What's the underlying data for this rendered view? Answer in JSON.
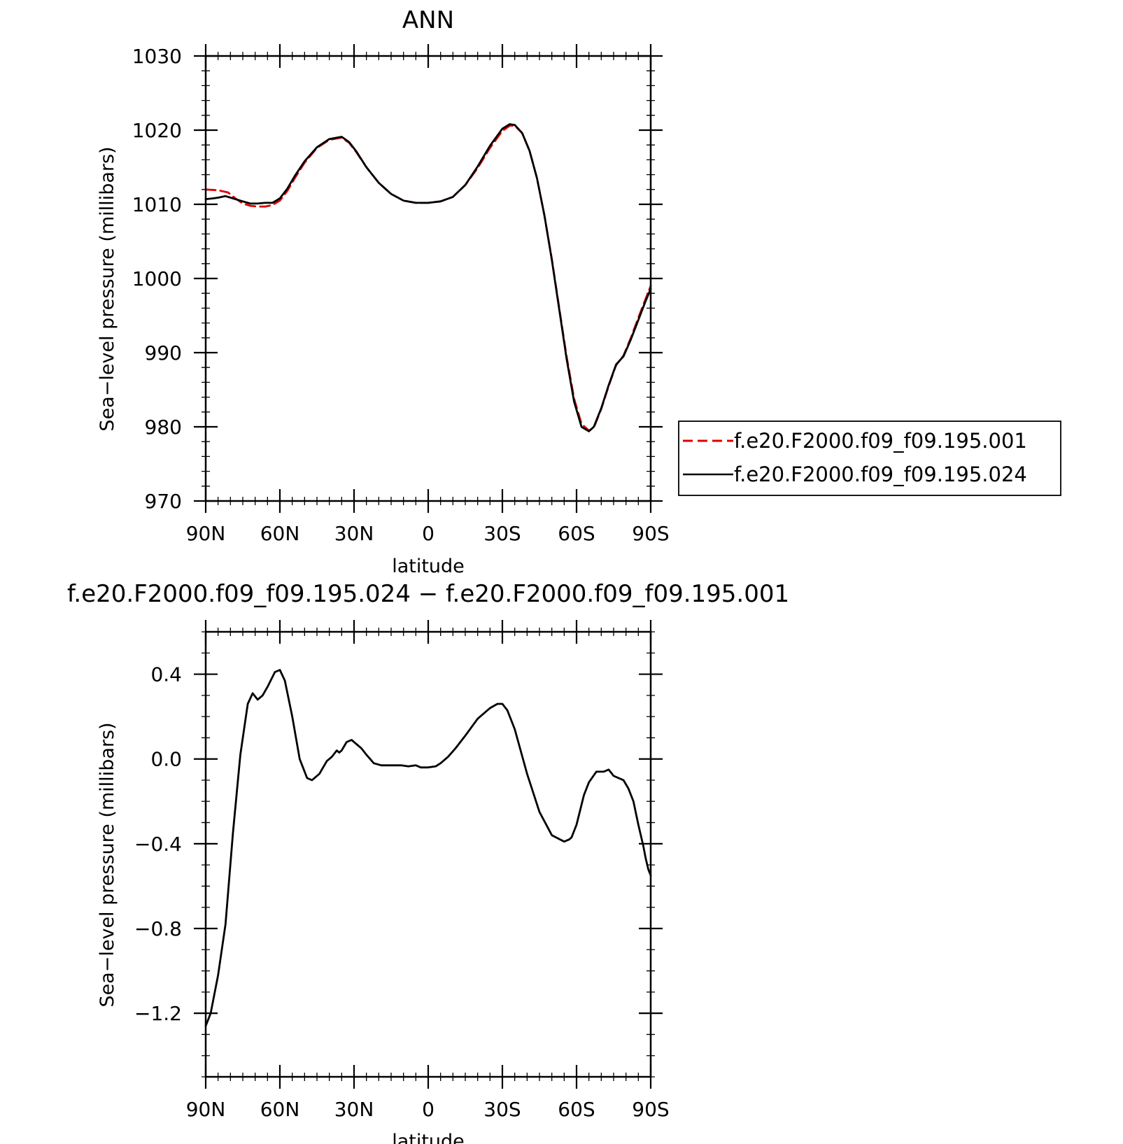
{
  "chart_data": [
    {
      "type": "line",
      "title": "ANN",
      "xlabel": "latitude",
      "ylabel": "Sea−level pressure (millibars)",
      "xlim": [
        90,
        -90
      ],
      "ylim": [
        970,
        1030
      ],
      "x_ticks": [
        {
          "value": 90,
          "label": "90N"
        },
        {
          "value": 60,
          "label": "60N"
        },
        {
          "value": 30,
          "label": "30N"
        },
        {
          "value": 0,
          "label": "0"
        },
        {
          "value": -30,
          "label": "30S"
        },
        {
          "value": -60,
          "label": "60S"
        },
        {
          "value": -90,
          "label": "90S"
        }
      ],
      "y_ticks": [
        {
          "value": 970,
          "label": "970"
        },
        {
          "value": 980,
          "label": "980"
        },
        {
          "value": 990,
          "label": "990"
        },
        {
          "value": 1000,
          "label": "1000"
        },
        {
          "value": 1010,
          "label": "1010"
        },
        {
          "value": 1020,
          "label": "1020"
        },
        {
          "value": 1030,
          "label": "1030"
        }
      ],
      "legend": "right",
      "series": [
        {
          "name": "f.e20.F2000.f09_f09.195.001",
          "color": "#e00000",
          "dash": "dashed",
          "x": [
            90,
            85,
            81,
            78,
            75,
            72,
            69,
            66,
            63,
            60,
            57,
            54,
            50,
            45,
            40,
            35,
            32,
            29,
            25,
            20,
            15,
            10,
            5,
            0,
            -5,
            -10,
            -15,
            -20,
            -25,
            -30,
            -33,
            -35,
            -38,
            -41,
            -44,
            -47,
            -50,
            -53,
            -56,
            -59,
            -62,
            -65,
            -67,
            -70,
            -73,
            -76,
            -79,
            -82,
            -85,
            -88,
            -90
          ],
          "y": [
            1012.0,
            1011.9,
            1011.6,
            1010.8,
            1010.1,
            1009.8,
            1009.7,
            1009.7,
            1009.9,
            1010.5,
            1011.8,
            1013.5,
            1015.6,
            1017.6,
            1018.7,
            1019.0,
            1018.3,
            1017.0,
            1015.0,
            1012.9,
            1011.4,
            1010.5,
            1010.2,
            1010.2,
            1010.4,
            1011.0,
            1012.6,
            1014.9,
            1017.6,
            1019.9,
            1020.6,
            1020.6,
            1019.6,
            1017.2,
            1013.5,
            1008.5,
            1002.6,
            996.0,
            989.4,
            983.8,
            980.4,
            979.5,
            979.9,
            982.4,
            985.5,
            988.3,
            989.6,
            992.0,
            994.7,
            997.3,
            999.0
          ]
        },
        {
          "name": "f.e20.F2000.f09_f09.195.024",
          "color": "#000000",
          "dash": "solid",
          "x": [
            90,
            87,
            85,
            82,
            79,
            75,
            72,
            69,
            66,
            63,
            60,
            57,
            54,
            50,
            45,
            40,
            35,
            32,
            29,
            25,
            20,
            15,
            10,
            5,
            0,
            -5,
            -10,
            -15,
            -20,
            -25,
            -30,
            -33,
            -35,
            -38,
            -41,
            -44,
            -47,
            -50,
            -53,
            -56,
            -59,
            -62,
            -65,
            -67,
            -70,
            -73,
            -76,
            -79,
            -82,
            -85,
            -88,
            -90
          ],
          "y": [
            1010.7,
            1010.8,
            1010.9,
            1011.1,
            1010.8,
            1010.4,
            1010.1,
            1010.1,
            1010.2,
            1010.2,
            1010.8,
            1012.1,
            1013.8,
            1015.8,
            1017.7,
            1018.8,
            1019.1,
            1018.4,
            1017.1,
            1015.0,
            1012.9,
            1011.4,
            1010.5,
            1010.2,
            1010.2,
            1010.4,
            1011.0,
            1012.6,
            1015.1,
            1017.9,
            1020.2,
            1020.8,
            1020.7,
            1019.6,
            1017.2,
            1013.5,
            1008.5,
            1002.5,
            995.8,
            989.1,
            983.4,
            980.0,
            979.4,
            980.0,
            982.5,
            985.6,
            988.4,
            989.5,
            991.8,
            994.4,
            997.0,
            998.6
          ]
        }
      ]
    },
    {
      "type": "line",
      "title": "f.e20.F2000.f09_f09.195.024 − f.e20.F2000.f09_f09.195.001",
      "xlabel": "latitude",
      "ylabel": "Sea−level pressure (millibars)",
      "xlim": [
        90,
        -90
      ],
      "ylim": [
        -1.5,
        0.6
      ],
      "x_ticks": [
        {
          "value": 90,
          "label": "90N"
        },
        {
          "value": 60,
          "label": "60N"
        },
        {
          "value": 30,
          "label": "30N"
        },
        {
          "value": 0,
          "label": "0"
        },
        {
          "value": -30,
          "label": "30S"
        },
        {
          "value": -60,
          "label": "60S"
        },
        {
          "value": -90,
          "label": "90S"
        }
      ],
      "y_ticks": [
        {
          "value": 0.4,
          "label": "0.4"
        },
        {
          "value": 0.0,
          "label": "0.0"
        },
        {
          "value": -0.4,
          "label": "−0.4"
        },
        {
          "value": -0.8,
          "label": "−0.8"
        },
        {
          "value": -1.2,
          "label": "−1.2"
        }
      ],
      "series": [
        {
          "name": "",
          "color": "#000000",
          "dash": "solid",
          "x": [
            90,
            88,
            85,
            82,
            79,
            76,
            73,
            71,
            69,
            67,
            65,
            62,
            60,
            58,
            55,
            52,
            49,
            47,
            44,
            41,
            39,
            37,
            36,
            35,
            33,
            31,
            29,
            27,
            25,
            22,
            19,
            17,
            14,
            11,
            8,
            5,
            3,
            0,
            -3,
            -5,
            -8,
            -11,
            -15,
            -20,
            -25,
            -28,
            -30,
            -32,
            -35,
            -40,
            -45,
            -50,
            -55,
            -57,
            -58,
            -60,
            -63,
            -65,
            -68,
            -71,
            -73,
            -75,
            -77,
            -79,
            -81,
            -83,
            -85,
            -87,
            -88,
            -89,
            -90
          ],
          "y": [
            -1.26,
            -1.2,
            -1.02,
            -0.78,
            -0.35,
            0.02,
            0.26,
            0.31,
            0.28,
            0.3,
            0.34,
            0.41,
            0.42,
            0.37,
            0.2,
            0.0,
            -0.09,
            -0.1,
            -0.07,
            -0.01,
            0.01,
            0.04,
            0.03,
            0.04,
            0.08,
            0.09,
            0.07,
            0.05,
            0.02,
            -0.02,
            -0.03,
            -0.03,
            -0.03,
            -0.03,
            -0.035,
            -0.03,
            -0.04,
            -0.04,
            -0.035,
            -0.02,
            0.01,
            0.05,
            0.11,
            0.19,
            0.24,
            0.26,
            0.26,
            0.23,
            0.14,
            -0.07,
            -0.25,
            -0.36,
            -0.39,
            -0.38,
            -0.37,
            -0.31,
            -0.17,
            -0.11,
            -0.06,
            -0.06,
            -0.05,
            -0.08,
            -0.09,
            -0.1,
            -0.14,
            -0.2,
            -0.31,
            -0.41,
            -0.47,
            -0.52,
            -0.55
          ]
        }
      ]
    }
  ]
}
